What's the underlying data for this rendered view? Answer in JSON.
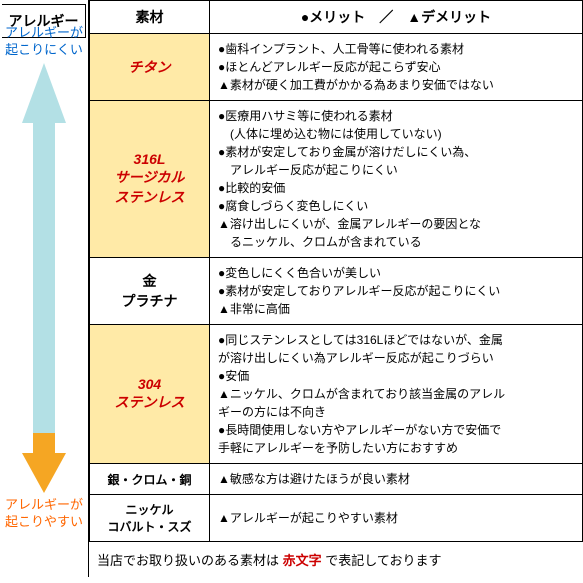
{
  "headers": {
    "allergy": "アレルギー",
    "material": "素材",
    "procon": "●メリット　／　▲デメリット"
  },
  "arrowLabels": {
    "top1": "アレルギーが",
    "top2": "起こりにくい",
    "bot1": "アレルギーが",
    "bot2": "起こりやすい"
  },
  "arrowColors": {
    "up": "#b3e0e5",
    "down": "#f5a623"
  },
  "rows": [
    {
      "material": "チタン",
      "highlight": true,
      "lines": [
        "●歯科インプラント、人工骨等に使われる素材",
        "●ほとんどアレルギー反応が起こらず安心",
        "▲素材が硬く加工費がかかる為あまり安価ではない"
      ]
    },
    {
      "material": "316L\nサージカル\nステンレス",
      "highlight": true,
      "lines": [
        "●医療用ハサミ等に使われる素材",
        "　(人体に埋め込む物には使用していない)",
        "●素材が安定しており金属が溶けだしにくい為、",
        "　アレルギー反応が起こりにくい",
        "●比較的安価",
        "●腐食しづらく変色しにくい",
        "▲溶け出しにくいが、金属アレルギーの要因とな",
        "　るニッケル、クロムが含まれている"
      ]
    },
    {
      "material": "金\nプラチナ",
      "highlight": false,
      "lines": [
        "●変色しにくく色合いが美しい",
        "●素材が安定しておりアレルギー反応が起こりにくい",
        "▲非常に高価"
      ]
    },
    {
      "material": "304\nステンレス",
      "highlight": true,
      "lines": [
        "●同じステンレスとしては316Lほどではないが、金属",
        "が溶け出しにくい為アレルギー反応が起こりづらい",
        "●安価",
        "▲ニッケル、クロムが含まれており該当金属のアレル",
        "ギーの方には不向き",
        "●長時間使用しない方やアレルギーがない方で安価で",
        "手軽にアレルギーを予防したい方におすすめ"
      ]
    },
    {
      "material": "銀・クロム・銅",
      "highlight": false,
      "lines": [
        "▲敏感な方は避けたほうが良い素材"
      ]
    },
    {
      "material": "ニッケル\nコバルト・スズ",
      "highlight": false,
      "lines": [
        "▲アレルギーが起こりやすい素材"
      ]
    }
  ],
  "footer": {
    "pre": "当店でお取り扱いのある素材は",
    "mid": "赤文字",
    "post": "で表記しております"
  }
}
